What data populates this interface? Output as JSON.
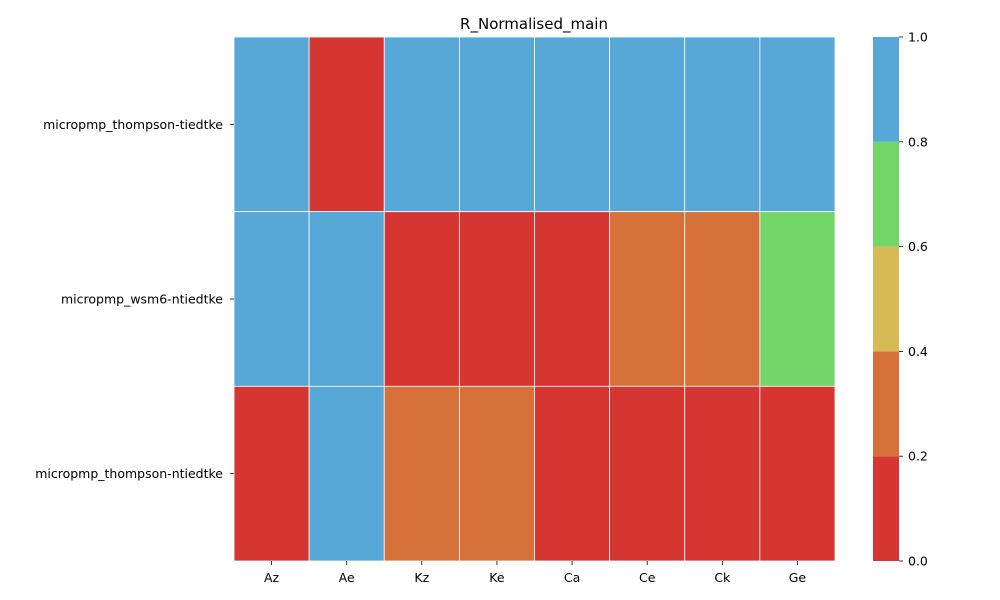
{
  "chart_data": {
    "type": "heatmap",
    "title": "R_Normalised_main",
    "xlabel": "",
    "ylabel": "",
    "x_categories": [
      "Az",
      "Ae",
      "Kz",
      "Ke",
      "Ca",
      "Ce",
      "Ck",
      "Ge"
    ],
    "y_categories": [
      "micropmp_thompson-tiedtke",
      "micropmp_wsm6-ntiedtke",
      "micropmp_thompson-ntiedtke"
    ],
    "values": [
      [
        1.0,
        0.0,
        1.0,
        1.0,
        1.0,
        1.0,
        1.0,
        1.0
      ],
      [
        1.0,
        1.0,
        0.0,
        0.0,
        0.0,
        0.3,
        0.3,
        0.7
      ],
      [
        0.0,
        1.0,
        0.3,
        0.3,
        0.0,
        0.0,
        0.0,
        0.0
      ]
    ],
    "colorbar": {
      "range": [
        0.0,
        1.0
      ],
      "ticks": [
        "0.0",
        "0.2",
        "0.4",
        "0.6",
        "0.8",
        "1.0"
      ],
      "bins": [
        {
          "from": 0.0,
          "to": 0.2,
          "color": "#d63632"
        },
        {
          "from": 0.2,
          "to": 0.4,
          "color": "#d6713a"
        },
        {
          "from": 0.4,
          "to": 0.6,
          "color": "#d6bb55"
        },
        {
          "from": 0.6,
          "to": 0.8,
          "color": "#73d668"
        },
        {
          "from": 0.8,
          "to": 1.0,
          "color": "#57a8d6"
        }
      ]
    },
    "grid": false,
    "legend": "colorbar-right"
  }
}
